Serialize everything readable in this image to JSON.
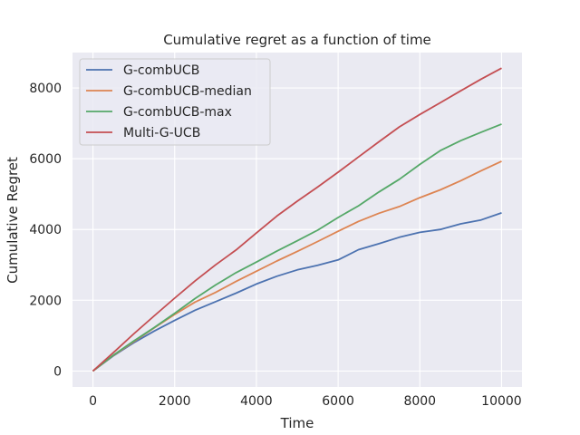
{
  "chart_data": {
    "type": "line",
    "title": "Cumulative regret as a function of time",
    "xlabel": "Time",
    "ylabel": "Cumulative Regret",
    "xlim": [
      -500,
      10500
    ],
    "ylim": [
      -450,
      9000
    ],
    "xticks": [
      0,
      2000,
      4000,
      6000,
      8000,
      10000
    ],
    "yticks": [
      0,
      2000,
      4000,
      6000,
      8000
    ],
    "xtick_labels": [
      "0",
      "2000",
      "4000",
      "6000",
      "8000",
      "10000"
    ],
    "ytick_labels": [
      "0",
      "2000",
      "4000",
      "6000",
      "8000"
    ],
    "grid": true,
    "legend_position": "top-left",
    "x": [
      0,
      500,
      1000,
      1500,
      2000,
      2500,
      3000,
      3500,
      4000,
      4500,
      5000,
      5500,
      6000,
      6500,
      7000,
      7500,
      8000,
      8500,
      9000,
      9500,
      10000
    ],
    "series": [
      {
        "name": "G-combUCB",
        "color": "#4c72b0",
        "values": [
          0,
          430,
          800,
          1130,
          1430,
          1720,
          1960,
          2200,
          2460,
          2680,
          2860,
          2990,
          3140,
          3430,
          3600,
          3780,
          3920,
          4000,
          4160,
          4270,
          4470
        ]
      },
      {
        "name": "G-combUCB-median",
        "color": "#dd8452",
        "values": [
          0,
          440,
          830,
          1220,
          1600,
          1950,
          2220,
          2530,
          2820,
          3110,
          3380,
          3660,
          3950,
          4230,
          4460,
          4650,
          4900,
          5120,
          5380,
          5660,
          5930
        ]
      },
      {
        "name": "G-combUCB-max",
        "color": "#55a868",
        "values": [
          0,
          450,
          850,
          1230,
          1630,
          2050,
          2430,
          2780,
          3080,
          3390,
          3680,
          3980,
          4340,
          4670,
          5060,
          5420,
          5840,
          6230,
          6510,
          6750,
          6980
        ]
      },
      {
        "name": "Multi-G-UCB",
        "color": "#c44e52",
        "values": [
          0,
          520,
          1050,
          1560,
          2060,
          2550,
          3000,
          3420,
          3900,
          4380,
          4800,
          5200,
          5620,
          6050,
          6480,
          6900,
          7250,
          7580,
          7920,
          8250,
          8560
        ]
      }
    ]
  }
}
